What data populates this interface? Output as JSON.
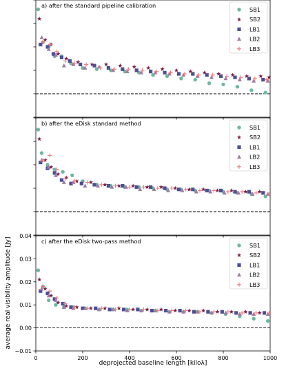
{
  "figure": {
    "ylabel": "average real visibility amplitude [Jy]",
    "xlabel": "deprojected baseline length [kiloλ]"
  },
  "colors": {
    "SB1": "#6fb8a0",
    "SB2": "#7a1f47",
    "LB1": "#4b4f96",
    "LB2": "#a07ba0",
    "LB3": "#f07a80",
    "zero_line": "#000000",
    "frame": "#000000"
  },
  "chart_data": [
    {
      "type": "scatter",
      "panel_label": "a) after the standard pipeline calibration",
      "xlim": [
        0,
        1000
      ],
      "ylim": [
        -0.01,
        0.04
      ],
      "show_x_ticklabels": false,
      "show_y_ticklabels": false,
      "zero_line": 0,
      "legend_position": "top-right",
      "series": [
        {
          "name": "SB1",
          "marker": "circle",
          "x": [
            10,
            30,
            55,
            80,
            110,
            150,
            200,
            260,
            320,
            380,
            440,
            500,
            560,
            620,
            680,
            740,
            800,
            860,
            920,
            980
          ],
          "y": [
            0.036,
            0.022,
            0.02,
            0.016,
            0.016,
            0.013,
            0.011,
            0.0105,
            0.01,
            0.0095,
            0.009,
            0.008,
            0.0075,
            0.0065,
            0.006,
            0.0045,
            0.004,
            0.003,
            0.0015,
            0.0005
          ]
        },
        {
          "name": "SB2",
          "marker": "star",
          "x": [
            15,
            40,
            65,
            95,
            130,
            180,
            240,
            300,
            360,
            420,
            480,
            540,
            600,
            660,
            720,
            780,
            840,
            900,
            960,
            995
          ],
          "y": [
            0.032,
            0.023,
            0.021,
            0.017,
            0.015,
            0.0135,
            0.0125,
            0.0125,
            0.012,
            0.0115,
            0.011,
            0.0105,
            0.01,
            0.0095,
            0.009,
            0.0085,
            0.008,
            0.0075,
            0.0075,
            0.007
          ]
        },
        {
          "name": "LB1",
          "marker": "square",
          "x": [
            20,
            50,
            75,
            110,
            145,
            190,
            250,
            310,
            370,
            430,
            490,
            550,
            610,
            670,
            730,
            790,
            850,
            910,
            970
          ],
          "y": [
            0.021,
            0.02,
            0.017,
            0.0155,
            0.014,
            0.0125,
            0.012,
            0.011,
            0.0105,
            0.01,
            0.0095,
            0.009,
            0.0085,
            0.0085,
            0.008,
            0.0075,
            0.007,
            0.0065,
            0.006
          ]
        },
        {
          "name": "LB2",
          "marker": "triangle",
          "x": [
            25,
            55,
            85,
            120,
            160,
            210,
            270,
            330,
            390,
            450,
            510,
            570,
            630,
            690,
            750,
            810,
            870,
            930,
            990
          ],
          "y": [
            0.024,
            0.019,
            0.0165,
            0.012,
            0.0125,
            0.011,
            0.0115,
            0.01,
            0.0095,
            0.009,
            0.009,
            0.0085,
            0.008,
            0.0075,
            0.007,
            0.0065,
            0.006,
            0.0055,
            0.0055
          ]
        },
        {
          "name": "LB3",
          "marker": "plus",
          "x": [
            30,
            60,
            90,
            125,
            165,
            215,
            275,
            335,
            395,
            455,
            515,
            575,
            635,
            695,
            755,
            815,
            875,
            935,
            985
          ],
          "y": [
            0.022,
            0.021,
            0.018,
            0.014,
            0.013,
            0.0125,
            0.011,
            0.0105,
            0.0105,
            0.01,
            0.0095,
            0.009,
            0.0085,
            0.008,
            0.008,
            0.0075,
            0.007,
            0.0065,
            0.006
          ]
        }
      ]
    },
    {
      "type": "scatter",
      "panel_label": "b) after the eDisk standard method",
      "xlim": [
        0,
        1000
      ],
      "ylim": [
        -0.01,
        0.04
      ],
      "show_x_ticklabels": false,
      "show_y_ticklabels": false,
      "zero_line": 0,
      "legend_position": "top-right",
      "series": [
        {
          "name": "SB1",
          "marker": "circle",
          "x": [
            10,
            25,
            50,
            80,
            115,
            155,
            200,
            260,
            320,
            380,
            440,
            500,
            560,
            620,
            680,
            740,
            800,
            860,
            920,
            980
          ],
          "y": [
            0.035,
            0.025,
            0.02,
            0.018,
            0.017,
            0.0155,
            0.013,
            0.0115,
            0.011,
            0.0105,
            0.0105,
            0.01,
            0.0095,
            0.0095,
            0.009,
            0.009,
            0.0085,
            0.008,
            0.0075,
            0.0065
          ]
        },
        {
          "name": "SB2",
          "marker": "star",
          "x": [
            15,
            40,
            65,
            95,
            130,
            175,
            235,
            295,
            355,
            415,
            475,
            535,
            595,
            655,
            715,
            775,
            835,
            895,
            955
          ],
          "y": [
            0.031,
            0.022,
            0.019,
            0.016,
            0.0145,
            0.013,
            0.0125,
            0.0115,
            0.011,
            0.011,
            0.0105,
            0.0105,
            0.01,
            0.0095,
            0.0095,
            0.009,
            0.009,
            0.0085,
            0.0085
          ]
        },
        {
          "name": "LB1",
          "marker": "square",
          "x": [
            20,
            50,
            80,
            110,
            150,
            195,
            250,
            310,
            370,
            430,
            490,
            550,
            610,
            670,
            730,
            790,
            850,
            910,
            970
          ],
          "y": [
            0.021,
            0.0185,
            0.0165,
            0.0135,
            0.012,
            0.012,
            0.0115,
            0.011,
            0.011,
            0.0105,
            0.0105,
            0.01,
            0.0095,
            0.0095,
            0.009,
            0.009,
            0.0085,
            0.0085,
            0.008
          ]
        },
        {
          "name": "LB2",
          "marker": "triangle",
          "x": [
            25,
            55,
            85,
            120,
            160,
            210,
            265,
            325,
            385,
            445,
            505,
            565,
            625,
            685,
            745,
            805,
            865,
            925,
            990
          ],
          "y": [
            0.022,
            0.019,
            0.0155,
            0.0125,
            0.0125,
            0.011,
            0.011,
            0.0105,
            0.0105,
            0.0095,
            0.0095,
            0.009,
            0.009,
            0.0085,
            0.0085,
            0.008,
            0.008,
            0.0075,
            0.0075
          ]
        },
        {
          "name": "LB3",
          "marker": "plus",
          "x": [
            30,
            60,
            90,
            125,
            165,
            220,
            280,
            340,
            400,
            460,
            520,
            580,
            640,
            700,
            760,
            820,
            880,
            940,
            995
          ],
          "y": [
            0.022,
            0.024,
            0.018,
            0.014,
            0.013,
            0.0125,
            0.0115,
            0.011,
            0.0105,
            0.0105,
            0.01,
            0.01,
            0.0095,
            0.009,
            0.009,
            0.0085,
            0.0085,
            0.008,
            0.0075
          ]
        }
      ]
    },
    {
      "type": "scatter",
      "panel_label": "c) after the eDisk two-pass method",
      "xlim": [
        0,
        1000
      ],
      "ylim": [
        -0.01,
        0.04
      ],
      "xticks": [
        0,
        200,
        400,
        600,
        800,
        1000
      ],
      "xtick_labels": [
        "0",
        "200",
        "400",
        "600",
        "800",
        "1000"
      ],
      "yticks": [
        -0.01,
        0.0,
        0.01,
        0.02,
        0.03,
        0.04
      ],
      "ytick_labels": [
        "−0.01",
        "0.00",
        "0.01",
        "0.02",
        "0.03",
        "0.04"
      ],
      "show_x_ticklabels": true,
      "show_y_ticklabels": true,
      "zero_line": 0,
      "legend_position": "top-right",
      "series": [
        {
          "name": "SB1",
          "marker": "circle",
          "x": [
            10,
            30,
            55,
            85,
            120,
            160,
            210,
            270,
            330,
            390,
            450,
            510,
            570,
            630,
            690,
            750,
            810,
            870,
            930,
            990
          ],
          "y": [
            0.025,
            0.018,
            0.012,
            0.01,
            0.009,
            0.009,
            0.0085,
            0.008,
            0.008,
            0.008,
            0.0075,
            0.0075,
            0.007,
            0.007,
            0.007,
            0.0065,
            0.006,
            0.005,
            0.004,
            0.003
          ]
        },
        {
          "name": "SB2",
          "marker": "star",
          "x": [
            15,
            40,
            65,
            95,
            130,
            175,
            235,
            295,
            355,
            415,
            475,
            535,
            595,
            655,
            715,
            775,
            835,
            895,
            955
          ],
          "y": [
            0.021,
            0.017,
            0.014,
            0.011,
            0.0095,
            0.009,
            0.0085,
            0.0085,
            0.0085,
            0.008,
            0.008,
            0.008,
            0.0075,
            0.0075,
            0.0075,
            0.007,
            0.007,
            0.007,
            0.0065
          ]
        },
        {
          "name": "LB1",
          "marker": "square",
          "x": [
            20,
            50,
            80,
            115,
            150,
            200,
            255,
            315,
            375,
            435,
            495,
            555,
            615,
            675,
            735,
            795,
            855,
            915,
            975
          ],
          "y": [
            0.016,
            0.015,
            0.0125,
            0.0105,
            0.009,
            0.0085,
            0.0085,
            0.008,
            0.008,
            0.008,
            0.0075,
            0.0075,
            0.0075,
            0.007,
            0.007,
            0.007,
            0.0065,
            0.0065,
            0.0065
          ]
        },
        {
          "name": "LB2",
          "marker": "triangle",
          "x": [
            25,
            55,
            85,
            120,
            160,
            210,
            270,
            330,
            390,
            450,
            510,
            570,
            630,
            690,
            750,
            810,
            870,
            930,
            990
          ],
          "y": [
            0.017,
            0.014,
            0.012,
            0.009,
            0.0085,
            0.0085,
            0.008,
            0.008,
            0.0075,
            0.0075,
            0.0075,
            0.007,
            0.007,
            0.007,
            0.0065,
            0.0065,
            0.006,
            0.006,
            0.006
          ]
        },
        {
          "name": "LB3",
          "marker": "plus",
          "x": [
            30,
            60,
            90,
            125,
            165,
            220,
            280,
            340,
            400,
            460,
            520,
            580,
            640,
            700,
            760,
            820,
            880,
            940,
            995
          ],
          "y": [
            0.018,
            0.016,
            0.013,
            0.0105,
            0.009,
            0.0085,
            0.0085,
            0.008,
            0.008,
            0.008,
            0.0075,
            0.0075,
            0.0075,
            0.007,
            0.007,
            0.007,
            0.0065,
            0.0065,
            0.0065
          ]
        }
      ]
    }
  ]
}
